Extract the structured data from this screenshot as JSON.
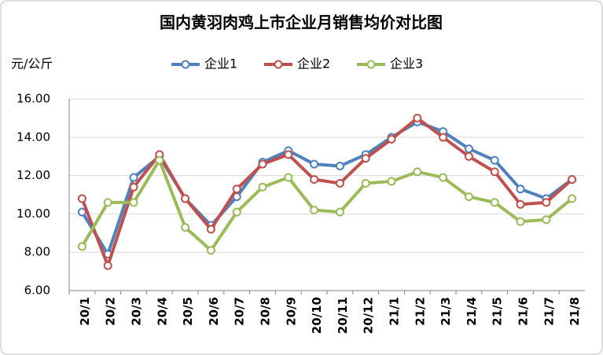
{
  "chart_data": {
    "type": "line",
    "title": "国内黄羽肉鸡上市企业月销售均价对比图",
    "y_label": "元/公斤",
    "categories": [
      "20/1",
      "20/2",
      "20/3",
      "20/4",
      "20/5",
      "20/6",
      "20/7",
      "20/8",
      "20/9",
      "20/10",
      "20/11",
      "20/12",
      "21/1",
      "21/2",
      "21/3",
      "21/4",
      "21/5",
      "21/6",
      "21/7",
      "21/8"
    ],
    "series": [
      {
        "name": "企业1",
        "color": "#4f81bd",
        "values": [
          10.1,
          7.9,
          11.9,
          13.0,
          10.8,
          9.4,
          10.9,
          12.7,
          13.3,
          12.6,
          12.5,
          13.1,
          14.0,
          14.8,
          14.3,
          13.4,
          12.8,
          11.3,
          10.8,
          11.8
        ]
      },
      {
        "name": "企业2",
        "color": "#c0504d",
        "values": [
          10.8,
          7.3,
          11.4,
          13.1,
          10.8,
          9.2,
          11.3,
          12.6,
          13.1,
          11.8,
          11.6,
          12.9,
          13.9,
          15.0,
          14.0,
          13.0,
          12.2,
          10.5,
          10.6,
          11.8
        ]
      },
      {
        "name": "企业3",
        "color": "#9bbb59",
        "values": [
          8.3,
          10.6,
          10.6,
          12.8,
          9.3,
          8.1,
          10.1,
          11.4,
          11.9,
          10.2,
          10.1,
          11.6,
          11.7,
          12.2,
          11.9,
          10.9,
          10.6,
          9.6,
          9.7,
          10.8
        ]
      }
    ],
    "ylim": [
      6,
      16
    ],
    "yticks": [
      {
        "value": 6,
        "label": "6.00"
      },
      {
        "value": 8,
        "label": "8.00"
      },
      {
        "value": 10,
        "label": "10.00"
      },
      {
        "value": 12,
        "label": "12.00"
      },
      {
        "value": 14,
        "label": "14.00"
      },
      {
        "value": 16,
        "label": "16.00"
      }
    ],
    "grid": true,
    "legend": "top"
  }
}
